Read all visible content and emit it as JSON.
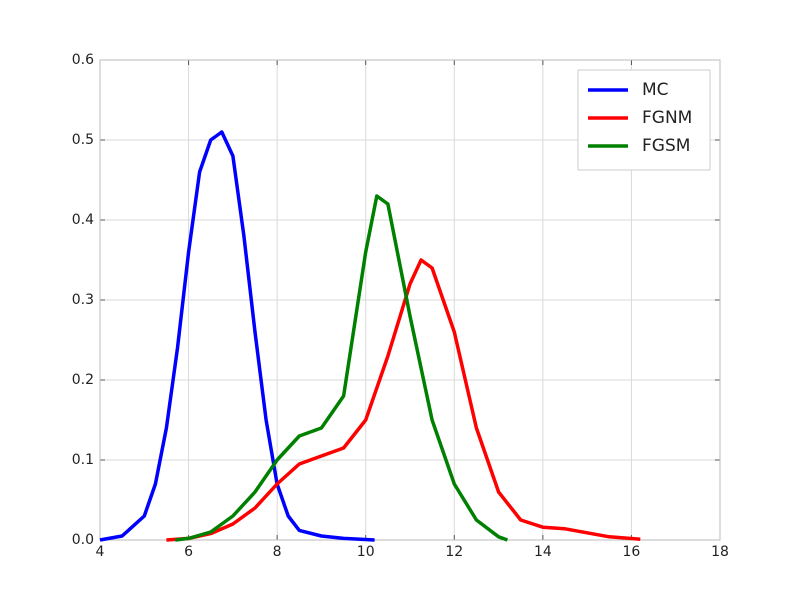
{
  "chart_data": {
    "type": "line",
    "xlim": [
      4,
      18
    ],
    "xticks": [
      4,
      6,
      8,
      10,
      12,
      14,
      16,
      18
    ],
    "ylim": [
      0,
      0.6
    ],
    "yticks": [
      {
        "value": 0,
        "label": "0.0"
      },
      0.1,
      0.2,
      0.3,
      0.4,
      0.5,
      0.6
    ],
    "grid": true,
    "legend": "upper right",
    "series": [
      {
        "name": "MC",
        "color": "#0000ff",
        "x": [
          4,
          4.5,
          5,
          5.25,
          5.5,
          5.75,
          6,
          6.25,
          6.5,
          6.75,
          7,
          7.25,
          7.5,
          7.75,
          8,
          8.25,
          8.5,
          9,
          9.5,
          10.2
        ],
        "values": [
          0,
          0.005,
          0.03,
          0.07,
          0.14,
          0.24,
          0.36,
          0.46,
          0.5,
          0.51,
          0.48,
          0.38,
          0.26,
          0.15,
          0.07,
          0.03,
          0.012,
          0.005,
          0.002,
          0
        ]
      },
      {
        "name": "FGNM",
        "color": "#ff0000",
        "x": [
          5.5,
          6,
          6.5,
          7,
          7.5,
          8,
          8.5,
          9,
          9.5,
          10,
          10.5,
          11,
          11.25,
          11.5,
          12,
          12.5,
          13,
          13.5,
          14,
          14.5,
          15,
          15.5,
          16.2
        ],
        "values": [
          0,
          0.002,
          0.008,
          0.02,
          0.04,
          0.07,
          0.095,
          0.105,
          0.115,
          0.15,
          0.23,
          0.32,
          0.35,
          0.34,
          0.26,
          0.14,
          0.06,
          0.025,
          0.016,
          0.014,
          0.009,
          0.004,
          0.001
        ]
      },
      {
        "name": "FGSM",
        "color": "#008000",
        "x": [
          5.7,
          6,
          6.5,
          7,
          7.5,
          8,
          8.5,
          9,
          9.5,
          10,
          10.25,
          10.5,
          11,
          11.5,
          12,
          12.5,
          13,
          13.2
        ],
        "values": [
          0,
          0.002,
          0.01,
          0.03,
          0.06,
          0.1,
          0.13,
          0.14,
          0.18,
          0.36,
          0.43,
          0.42,
          0.28,
          0.15,
          0.07,
          0.025,
          0.004,
          0
        ]
      }
    ]
  }
}
